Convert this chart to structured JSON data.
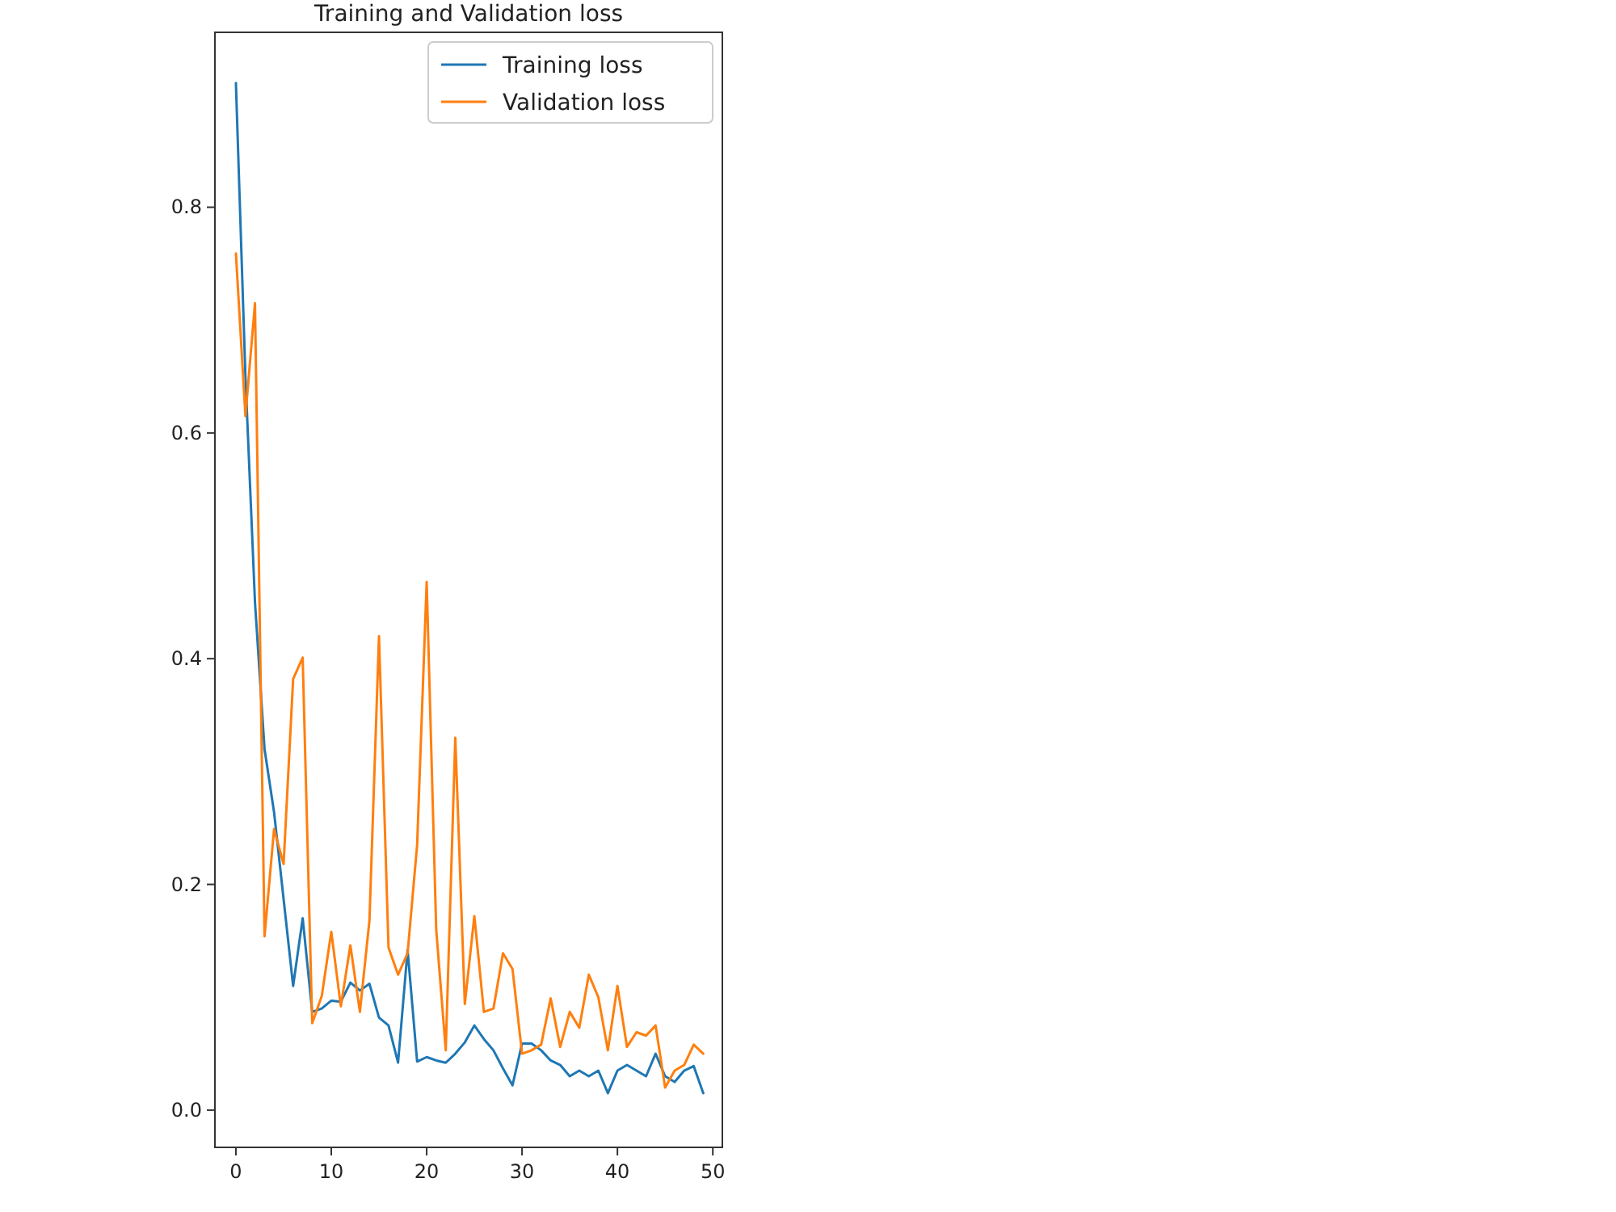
{
  "chart_data": {
    "type": "line",
    "title": "Training and Validation loss",
    "x": [
      0,
      1,
      2,
      3,
      4,
      5,
      6,
      7,
      8,
      9,
      10,
      11,
      12,
      13,
      14,
      15,
      16,
      17,
      18,
      19,
      20,
      21,
      22,
      23,
      24,
      25,
      26,
      27,
      28,
      29,
      30,
      31,
      32,
      33,
      34,
      35,
      36,
      37,
      38,
      39,
      40,
      41,
      42,
      43,
      44,
      45,
      46,
      47,
      48,
      49
    ],
    "series": [
      {
        "name": "Training loss",
        "color": "#1f77b4",
        "values": [
          0.91,
          0.65,
          0.45,
          0.32,
          0.264,
          0.187,
          0.11,
          0.17,
          0.087,
          0.09,
          0.097,
          0.096,
          0.113,
          0.106,
          0.112,
          0.082,
          0.075,
          0.042,
          0.142,
          0.043,
          0.047,
          0.044,
          0.042,
          0.05,
          0.06,
          0.075,
          0.063,
          0.053,
          0.037,
          0.022,
          0.059,
          0.059,
          0.053,
          0.044,
          0.04,
          0.03,
          0.035,
          0.03,
          0.035,
          0.015,
          0.035,
          0.04,
          0.035,
          0.03,
          0.05,
          0.03,
          0.025,
          0.035,
          0.039,
          0.015
        ]
      },
      {
        "name": "Validation loss",
        "color": "#ff7f0e",
        "values": [
          0.759,
          0.615,
          0.715,
          0.154,
          0.249,
          0.218,
          0.382,
          0.401,
          0.077,
          0.101,
          0.158,
          0.092,
          0.146,
          0.087,
          0.168,
          0.42,
          0.144,
          0.12,
          0.139,
          0.235,
          0.468,
          0.16,
          0.053,
          0.33,
          0.094,
          0.172,
          0.087,
          0.09,
          0.139,
          0.125,
          0.05,
          0.053,
          0.058,
          0.099,
          0.056,
          0.087,
          0.073,
          0.12,
          0.1,
          0.053,
          0.11,
          0.056,
          0.069,
          0.066,
          0.075,
          0.02,
          0.035,
          0.04,
          0.058,
          0.05
        ]
      }
    ],
    "xlim": [
      -2.2,
      51
    ],
    "xticks": [
      0,
      10,
      20,
      30,
      40,
      50
    ],
    "ylim": [
      -0.033,
      0.955
    ],
    "yticks": [
      {
        "value": 0,
        "label": "0.0"
      },
      {
        "value": 0.2,
        "label": "0.2"
      },
      {
        "value": 0.4,
        "label": "0.4"
      },
      {
        "value": 0.6,
        "label": "0.6"
      },
      {
        "value": 0.8,
        "label": "0.8"
      }
    ],
    "legend": "top right",
    "grid": false,
    "line_style": "solid",
    "marker": "none"
  }
}
